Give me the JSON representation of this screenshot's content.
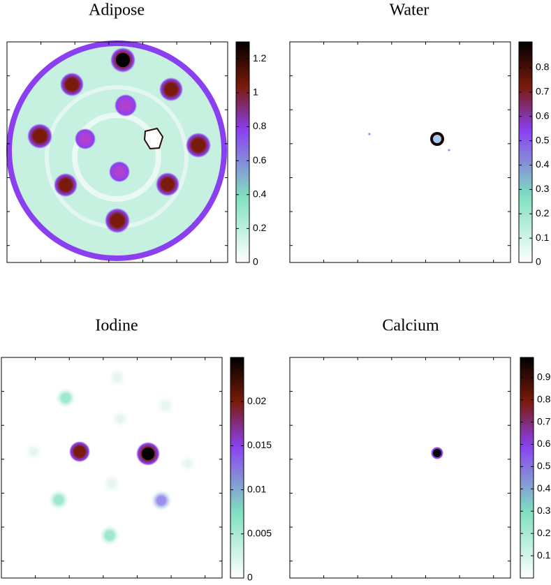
{
  "chart_data": [
    {
      "type": "image",
      "title": "Adipose",
      "clim": [
        0,
        1.3
      ],
      "cticks": [
        0,
        0.2,
        0.4,
        0.6,
        0.8,
        1,
        1.2
      ]
    },
    {
      "type": "image",
      "title": "Water",
      "clim": [
        0,
        0.906
      ],
      "cticks": [
        0,
        0.1,
        0.2,
        0.3,
        0.4,
        0.5,
        0.6,
        0.7,
        0.8
      ]
    },
    {
      "type": "image",
      "title": "Iodine",
      "clim": [
        0,
        0.025
      ],
      "cticks": [
        0,
        0.005,
        0.01,
        0.015,
        0.02
      ]
    },
    {
      "type": "image",
      "title": "Calcium",
      "clim": [
        0,
        0.99
      ],
      "cticks": [
        0.1,
        0.2,
        0.3,
        0.4,
        0.5,
        0.6,
        0.7,
        0.8,
        0.9
      ]
    }
  ]
}
